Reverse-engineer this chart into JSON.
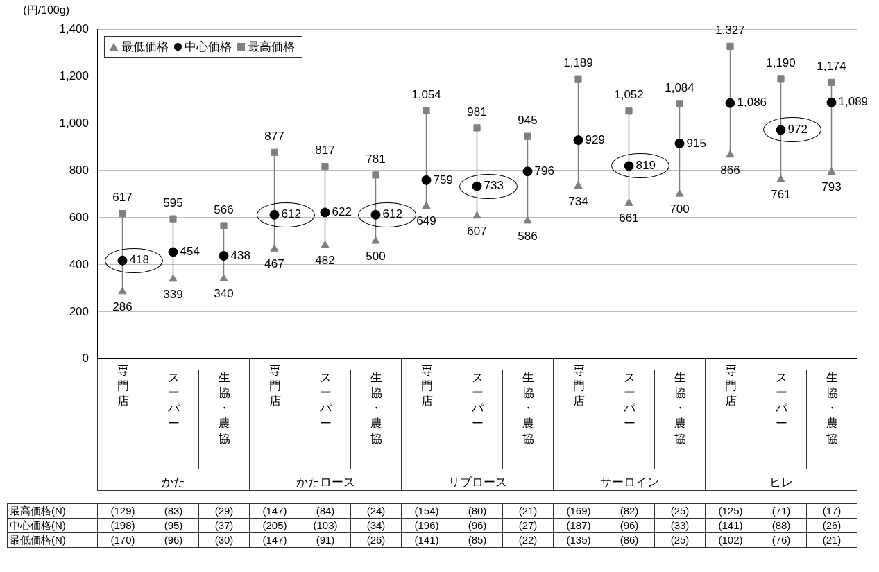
{
  "chart_data": {
    "type": "scatter",
    "ylabel": "(円/100g)",
    "categories": [
      "専門店",
      "スーパー",
      "生協・農協",
      "専門店",
      "スーパー",
      "生協・農協",
      "専門店",
      "スーパー",
      "生協・農協",
      "専門店",
      "スーパー",
      "生協・農協",
      "専門店",
      "スーパー",
      "生協・農協"
    ],
    "series": [
      {
        "name": "最低価格",
        "color": "#808080",
        "marker": "triangle",
        "values": [
          286,
          339,
          340,
          467,
          482,
          500,
          649,
          607,
          586,
          734,
          661,
          700,
          866,
          761,
          793
        ],
        "value_labels": [
          "286",
          "339",
          "340",
          "467",
          "482",
          "500",
          "649",
          "607",
          "586",
          "734",
          "661",
          "700",
          "866",
          "761",
          "793"
        ]
      },
      {
        "name": "中心価格",
        "color": "#000000",
        "marker": "circle",
        "values": [
          418,
          454,
          438,
          612,
          622,
          612,
          759,
          733,
          796,
          929,
          819,
          915,
          1086,
          972,
          1089
        ],
        "value_labels": [
          "418",
          "454",
          "438",
          "612",
          "622",
          "612",
          "759",
          "733",
          "796",
          "929",
          "819",
          "915",
          "1,086",
          "972",
          "1,089"
        ]
      },
      {
        "name": "最高価格",
        "color": "#808080",
        "marker": "square",
        "values": [
          617,
          595,
          566,
          877,
          817,
          781,
          1054,
          981,
          945,
          1189,
          1052,
          1084,
          1327,
          1190,
          1174
        ],
        "value_labels": [
          "617",
          "595",
          "566",
          "877",
          "817",
          "781",
          "1,054",
          "981",
          "945",
          "1,189",
          "1,052",
          "1,084",
          "1,327",
          "1,190",
          "1,174"
        ]
      }
    ],
    "ylim": [
      0,
      1400
    ],
    "yticks": [
      0,
      {
        "value": 200,
        "label": "200"
      },
      {
        "value": 400,
        "label": "400"
      },
      {
        "value": 600,
        "label": "600"
      },
      {
        "value": 800,
        "label": "800"
      },
      {
        "value": 1000,
        "label": "1,000"
      },
      {
        "value": 1200,
        "label": "1,200"
      },
      {
        "value": 1400,
        "label": "1,400"
      }
    ],
    "grid": "y",
    "legend": "top left",
    "annotations": [
      "かた",
      "かたロース",
      "リブロース",
      "サーロイン",
      "ヒレ",
      "最高価格(N)",
      "(129)",
      "(83)",
      "(29)",
      "(147)",
      "(84)",
      "(24)",
      "(154)",
      "(80)",
      "(21)",
      "(169)",
      "(82)",
      "(25)",
      "(125)",
      "(71)",
      "(17)",
      "中心価格(N)",
      "(198)",
      "(95)",
      "(37)",
      "(205)",
      "(103)",
      "(34)",
      "(196)",
      "(96)",
      "(27)",
      "(187)",
      "(96)",
      "(33)",
      "(141)",
      "(88)",
      "(26)",
      "最低価格(N)",
      "(170)",
      "(96)",
      "(30)",
      "(147)",
      "(91)",
      "(26)",
      "(141)",
      "(85)",
      "(22)",
      "(135)",
      "(86)",
      "(25)",
      "(102)",
      "(76)",
      "(21)"
    ]
  }
}
